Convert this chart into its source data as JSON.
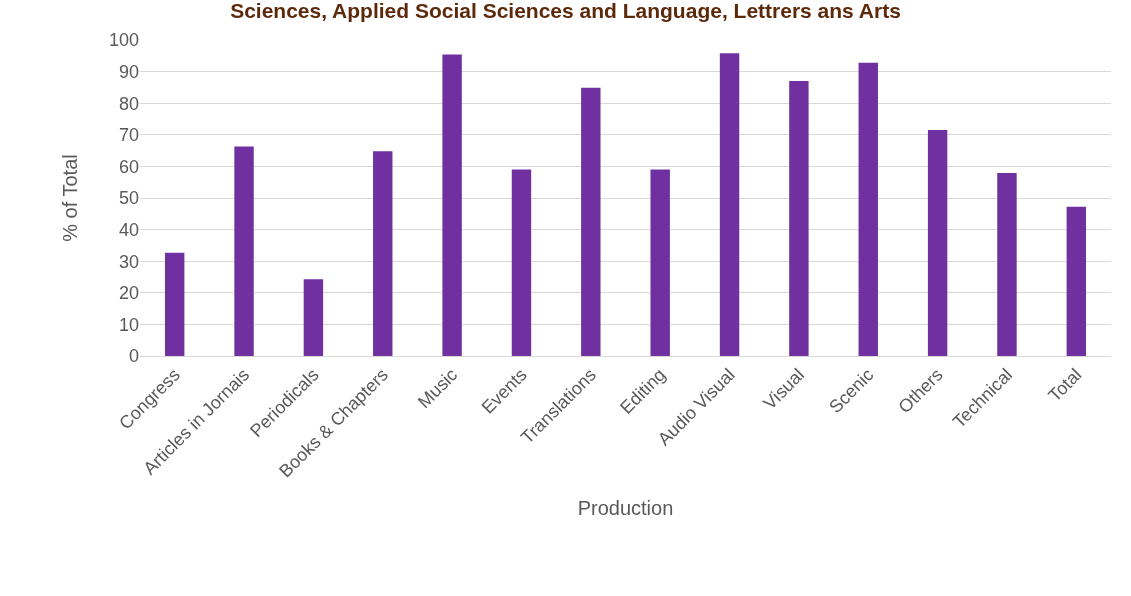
{
  "chart_data": {
    "type": "bar",
    "title": "Sciences, Applied Social Sciences and Language, Lettrers ans Arts",
    "xlabel": "Production",
    "ylabel": "% of Total",
    "categories": [
      "Congress",
      "Articles in Jornais",
      "Periodicals",
      "Books & Chapters",
      "Music",
      "Events",
      "Translations",
      "Editing",
      "Audio Visual",
      "Visual",
      "Scenic",
      "Others",
      "Technical",
      "Total"
    ],
    "values": [
      32.7,
      66.3,
      24.3,
      64.8,
      95.4,
      59,
      84.9,
      59,
      95.8,
      87,
      92.8,
      71.5,
      57.9,
      47.2
    ],
    "color": "#7030a0",
    "ylim": [
      0,
      100
    ],
    "yticks": [
      0,
      10,
      20,
      30,
      40,
      50,
      60,
      70,
      80,
      90,
      100
    ],
    "grid": "y"
  }
}
